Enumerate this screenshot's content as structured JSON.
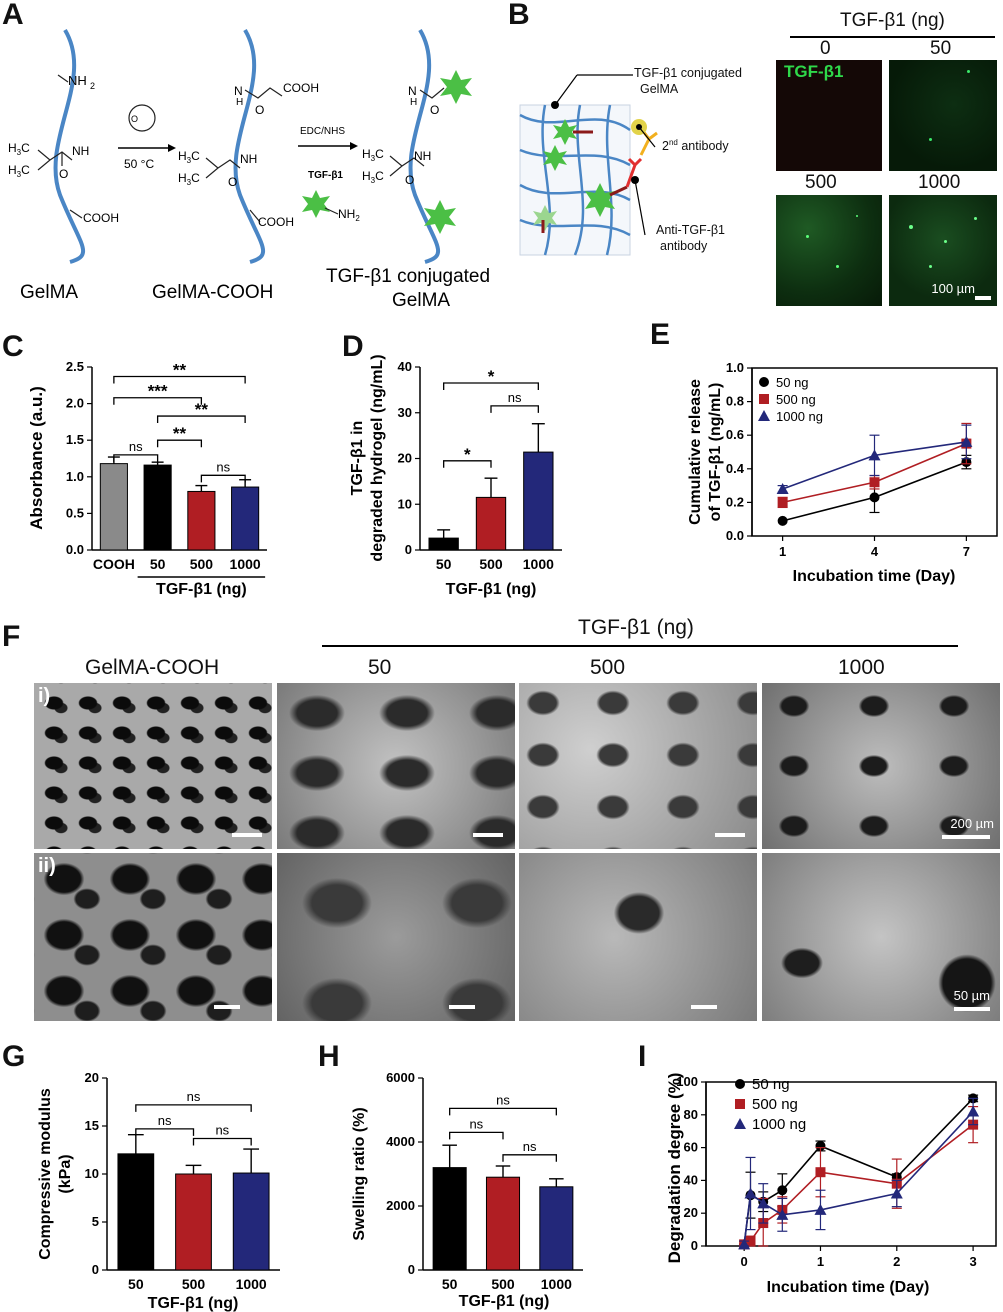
{
  "panels": {
    "A": {
      "label": "A",
      "reagent_temp": "50 °C",
      "reagent_edc": "EDC/NHS",
      "reagent_tgf": "TGF-β1",
      "nh2": "NH",
      "nh2_sub": "2",
      "cooh": "COOH",
      "captions": [
        "GelMA",
        "GelMA-COOH",
        "TGF-β1 conjugated",
        "GelMA"
      ]
    },
    "B": {
      "label": "B",
      "legend_conjugated": [
        "TGF-β1 conjugated",
        "GelMA"
      ],
      "legend_secondary": "2",
      "legend_secondary_sup": "nd",
      "legend_secondary_rest": " antibody",
      "legend_anti": [
        "Anti-TGF-β1",
        "antibody"
      ],
      "header": "TGF-β1 (ng)",
      "dose_labels": [
        "0",
        "50",
        "500",
        "1000"
      ],
      "image_tag": "TGF-β1",
      "scale": "100 µm"
    },
    "F": {
      "label": "F",
      "header": "TGF-β1 (ng)",
      "columns": [
        "GelMA-COOH",
        "50",
        "500",
        "1000"
      ],
      "rows": [
        "i)",
        "ii)"
      ],
      "scale_top": "200 µm",
      "scale_bottom": "50 µm"
    }
  },
  "chart_data": [
    {
      "panel": "C",
      "type": "bar",
      "categories": [
        "COOH",
        "50",
        "500",
        "1000"
      ],
      "values": [
        1.18,
        1.16,
        0.8,
        0.86
      ],
      "errors": [
        0.09,
        0.04,
        0.08,
        0.1
      ],
      "colors": [
        "#8a8a8a",
        "#000000",
        "#b01e23",
        "#23287a"
      ],
      "ylabel": "Absorbance  (a.u.)",
      "xlabel": "TGF-β1 (ng)",
      "ylim": [
        0,
        2.5
      ],
      "yticks": [
        "0.0",
        "0.5",
        "1.0",
        "1.5",
        "2.0",
        "2.5"
      ],
      "significance": [
        {
          "from": 0,
          "to": 3,
          "y": 2.37,
          "label": "**"
        },
        {
          "from": 0,
          "to": 2,
          "y": 2.08,
          "label": "***"
        },
        {
          "from": 1,
          "to": 3,
          "y": 1.83,
          "label": "**"
        },
        {
          "from": 1,
          "to": 2,
          "y": 1.5,
          "label": "**"
        },
        {
          "from": 0,
          "to": 1,
          "y": 1.3,
          "label": "ns"
        },
        {
          "from": 2,
          "to": 3,
          "y": 1.02,
          "label": "ns"
        }
      ]
    },
    {
      "panel": "D",
      "type": "bar",
      "categories": [
        "50",
        "500",
        "1000"
      ],
      "values": [
        2.6,
        11.5,
        21.4
      ],
      "errors": [
        1.8,
        4.2,
        6.2
      ],
      "colors": [
        "#000000",
        "#b01e23",
        "#23287a"
      ],
      "ylabel": [
        "TGF-β1 in",
        "degraded hydrogel   (ng/mL)"
      ],
      "xlabel": "TGF-β1 (ng)",
      "ylim": [
        0,
        40
      ],
      "yticks": [
        "0",
        "10",
        "20",
        "30",
        "40"
      ],
      "significance": [
        {
          "from": 0,
          "to": 2,
          "y": 36.5,
          "label": "*"
        },
        {
          "from": 1,
          "to": 2,
          "y": 31.5,
          "label": "ns"
        },
        {
          "from": 0,
          "to": 1,
          "y": 19.5,
          "label": "*"
        }
      ]
    },
    {
      "panel": "E",
      "type": "line",
      "x": [
        1,
        4,
        7
      ],
      "xticks": [
        "1",
        "4",
        "7"
      ],
      "xlim": [
        0,
        8
      ],
      "series": [
        {
          "name": "50 ng",
          "values": [
            0.09,
            0.23,
            0.44
          ],
          "errors": [
            0.0,
            0.09,
            0.04
          ],
          "color": "#000000",
          "marker": "circle"
        },
        {
          "name": "500 ng",
          "values": [
            0.2,
            0.32,
            0.55
          ],
          "errors": [
            0.03,
            0.04,
            0.12
          ],
          "color": "#b01e23",
          "marker": "square"
        },
        {
          "name": "1000 ng",
          "values": [
            0.28,
            0.48,
            0.56
          ],
          "errors": [
            0.02,
            0.12,
            0.1
          ],
          "color": "#23287a",
          "marker": "triangle"
        }
      ],
      "ylabel": [
        "Cumulative release",
        "of TGF-β1 (ng/mL)"
      ],
      "xlabel": "Incubation time (Day)",
      "ylim": [
        0,
        1
      ],
      "yticks": [
        "0.0",
        "0.2",
        "0.4",
        "0.6",
        "0.8",
        "1.0"
      ],
      "legend": "top-left"
    },
    {
      "panel": "G",
      "type": "bar",
      "categories": [
        "50",
        "500",
        "1000"
      ],
      "values": [
        12.1,
        10.0,
        10.1
      ],
      "errors": [
        2.0,
        0.9,
        2.5
      ],
      "colors": [
        "#000000",
        "#b01e23",
        "#23287a"
      ],
      "ylabel": [
        "Compressive modulus",
        "(kPa)"
      ],
      "xlabel": "TGF-β1 (ng)",
      "ylim": [
        0,
        20
      ],
      "yticks": [
        "0",
        "5",
        "10",
        "15",
        "20"
      ],
      "significance": [
        {
          "from": 0,
          "to": 2,
          "y": 17.2,
          "label": "ns"
        },
        {
          "from": 0,
          "to": 1,
          "y": 14.7,
          "label": "ns"
        },
        {
          "from": 1,
          "to": 2,
          "y": 13.7,
          "label": "ns"
        }
      ]
    },
    {
      "panel": "H",
      "type": "bar",
      "categories": [
        "50",
        "500",
        "1000"
      ],
      "values": [
        3200,
        2900,
        2600
      ],
      "errors": [
        700,
        350,
        250
      ],
      "colors": [
        "#000000",
        "#b01e23",
        "#23287a"
      ],
      "ylabel": "Swelling ratio   (%)",
      "xlabel": "TGF-β1 (ng)",
      "ylim": [
        0,
        6000
      ],
      "yticks": [
        "0",
        "2000",
        "4000",
        "6000"
      ],
      "significance": [
        {
          "from": 0,
          "to": 2,
          "y": 5050,
          "label": "ns"
        },
        {
          "from": 0,
          "to": 1,
          "y": 4300,
          "label": "ns"
        },
        {
          "from": 1,
          "to": 2,
          "y": 3600,
          "label": "ns"
        }
      ]
    },
    {
      "panel": "I",
      "type": "line",
      "x": [
        0,
        0.083,
        0.25,
        0.5,
        1,
        2,
        3
      ],
      "xticks": [
        "0",
        "1",
        "2",
        "3"
      ],
      "xlim": [
        -0.5,
        3.3
      ],
      "series": [
        {
          "name": "50 ng",
          "values": [
            1,
            31,
            27,
            34,
            61,
            42,
            90
          ],
          "errors": [
            2,
            14,
            6,
            10,
            3,
            2,
            2
          ],
          "color": "#000000",
          "marker": "circle"
        },
        {
          "name": "500 ng",
          "values": [
            1,
            3,
            14,
            22,
            45,
            38,
            74
          ],
          "errors": [
            2,
            3,
            15,
            8,
            15,
            15,
            11
          ],
          "color": "#b01e23",
          "marker": "square"
        },
        {
          "name": "1000 ng",
          "values": [
            1,
            32,
            26,
            19,
            22,
            32,
            82
          ],
          "errors": [
            2,
            22,
            12,
            10,
            12,
            8,
            8
          ],
          "color": "#23287a",
          "marker": "triangle"
        }
      ],
      "ylabel": "Degradation degree   (%)",
      "xlabel": "Incubation time (Day)",
      "ylim": [
        0,
        100
      ],
      "yticks": [
        "0",
        "20",
        "40",
        "60",
        "80",
        "100"
      ],
      "legend": "top-left"
    }
  ]
}
